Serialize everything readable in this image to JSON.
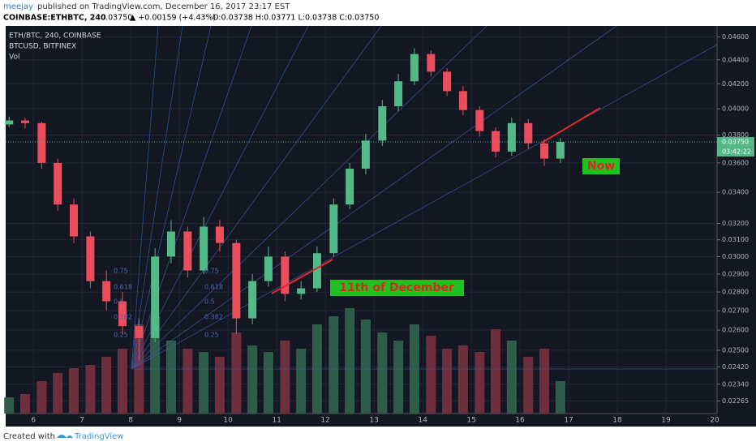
{
  "header": {
    "author": "meejay",
    "published": "published on TradingView.com, December 16, 2017 23:17 EST",
    "symbol": "COINBASE:ETHBTC, 240",
    "last": "0.03750",
    "change": "▲ +0.00159 (+4.43%)",
    "ohlc": "O:0.03738 H:0.03771 L:0.03738 C:0.03750"
  },
  "footer": {
    "created": "Created with",
    "brand": "TradingView"
  },
  "chart_data": {
    "type": "candlestick",
    "legend": [
      "ETH/BTC, 240, COINBASE",
      "BTCUSD, BITFINEX",
      "Vol"
    ],
    "log_scale": true,
    "grid": true,
    "up_color": "#53b987",
    "down_color": "#eb4d5c",
    "volume_up_color": "#2f5b4b",
    "volume_down_color": "#6b2f3e",
    "x": [
      5.5,
      5.83,
      6.17,
      6.5,
      6.83,
      7.17,
      7.5,
      7.83,
      8.17,
      8.5,
      8.83,
      9.17,
      9.5,
      9.83,
      10.17,
      10.5,
      10.83,
      11.17,
      11.5,
      11.83,
      12.17,
      12.5,
      12.83,
      13.17,
      13.5,
      13.83,
      14.17,
      14.5,
      14.83,
      15.17,
      15.5,
      15.83,
      16.17,
      16.5,
      16.83
    ],
    "open": [
      0.0388,
      0.0391,
      0.0389,
      0.036,
      0.0332,
      0.0312,
      0.0286,
      0.0275,
      0.0262,
      0.0256,
      0.03,
      0.0315,
      0.0292,
      0.0318,
      0.0308,
      0.0266,
      0.0286,
      0.03,
      0.0279,
      0.0282,
      0.0302,
      0.0332,
      0.0356,
      0.0376,
      0.0402,
      0.0422,
      0.0445,
      0.043,
      0.0414,
      0.0399,
      0.0383,
      0.0368,
      0.0389,
      0.0374,
      0.0363
    ],
    "high": [
      0.0394,
      0.0393,
      0.039,
      0.0363,
      0.0336,
      0.0315,
      0.0292,
      0.028,
      0.0266,
      0.0305,
      0.0322,
      0.0318,
      0.0324,
      0.0322,
      0.031,
      0.029,
      0.0306,
      0.0303,
      0.0286,
      0.0306,
      0.0336,
      0.036,
      0.0381,
      0.0407,
      0.0428,
      0.045,
      0.0448,
      0.0433,
      0.0418,
      0.0402,
      0.0386,
      0.0393,
      0.0392,
      0.0377,
      0.0378
    ],
    "low": [
      0.0386,
      0.0385,
      0.0356,
      0.0328,
      0.0308,
      0.0282,
      0.027,
      0.0258,
      0.0245,
      0.0254,
      0.0296,
      0.0288,
      0.029,
      0.0303,
      0.0258,
      0.0263,
      0.0283,
      0.0275,
      0.0276,
      0.028,
      0.03,
      0.0329,
      0.0352,
      0.0372,
      0.0398,
      0.0419,
      0.0426,
      0.041,
      0.0395,
      0.0379,
      0.0364,
      0.0365,
      0.037,
      0.0358,
      0.036
    ],
    "close": [
      0.0391,
      0.0389,
      0.036,
      0.0332,
      0.0312,
      0.0286,
      0.0275,
      0.0262,
      0.0256,
      0.03,
      0.0315,
      0.0292,
      0.0318,
      0.0308,
      0.0266,
      0.0286,
      0.03,
      0.0279,
      0.0282,
      0.0302,
      0.0332,
      0.0356,
      0.0376,
      0.0402,
      0.0422,
      0.0445,
      0.043,
      0.0414,
      0.0399,
      0.0383,
      0.0368,
      0.0389,
      0.0374,
      0.0363,
      0.0375
    ],
    "volume": [
      10,
      12,
      20,
      25,
      28,
      30,
      35,
      40,
      55,
      60,
      45,
      40,
      38,
      35,
      50,
      42,
      38,
      45,
      40,
      55,
      60,
      65,
      58,
      50,
      45,
      55,
      48,
      40,
      42,
      38,
      52,
      45,
      35,
      40,
      20
    ],
    "xlim": [
      5.43,
      20.05
    ],
    "xticks": [
      6,
      7,
      8,
      9,
      10,
      11,
      12,
      13,
      14,
      15,
      16,
      17,
      18,
      19,
      20
    ],
    "ylim": [
      0.0221,
      0.047
    ],
    "yticks": [
      {
        "value": 0.046,
        "label": "0.04600"
      },
      {
        "value": 0.044,
        "label": "0.04400"
      },
      {
        "value": 0.042,
        "label": "0.04200"
      },
      {
        "value": 0.04,
        "label": "0.04000"
      },
      {
        "value": 0.038,
        "label": "0.03800"
      },
      {
        "value": 0.036,
        "label": "0.03600"
      },
      {
        "value": 0.034,
        "label": "0.03400"
      },
      {
        "value": 0.032,
        "label": "0.03200"
      },
      {
        "value": 0.031,
        "label": "0.03100"
      },
      {
        "value": 0.03,
        "label": "0.03000"
      },
      {
        "value": 0.029,
        "label": "0.02900"
      },
      {
        "value": 0.028,
        "label": "0.02800"
      },
      {
        "value": 0.027,
        "label": "0.02700"
      },
      {
        "value": 0.026,
        "label": "0.02600"
      },
      {
        "value": 0.025,
        "label": "0.02500"
      },
      {
        "value": 0.0242,
        "label": "0.02420"
      },
      {
        "value": 0.0234,
        "label": "0.02340"
      },
      {
        "value": 0.02265,
        "label": "0.02265"
      }
    ],
    "last_price": {
      "value": 0.0375,
      "label": "0.03750"
    },
    "countdown": "03:42:22",
    "fib_labels": [
      "0.75",
      "0.618",
      "0.5",
      "0.382",
      "0.25"
    ],
    "annotations": [
      "11th of December",
      "Now"
    ]
  }
}
